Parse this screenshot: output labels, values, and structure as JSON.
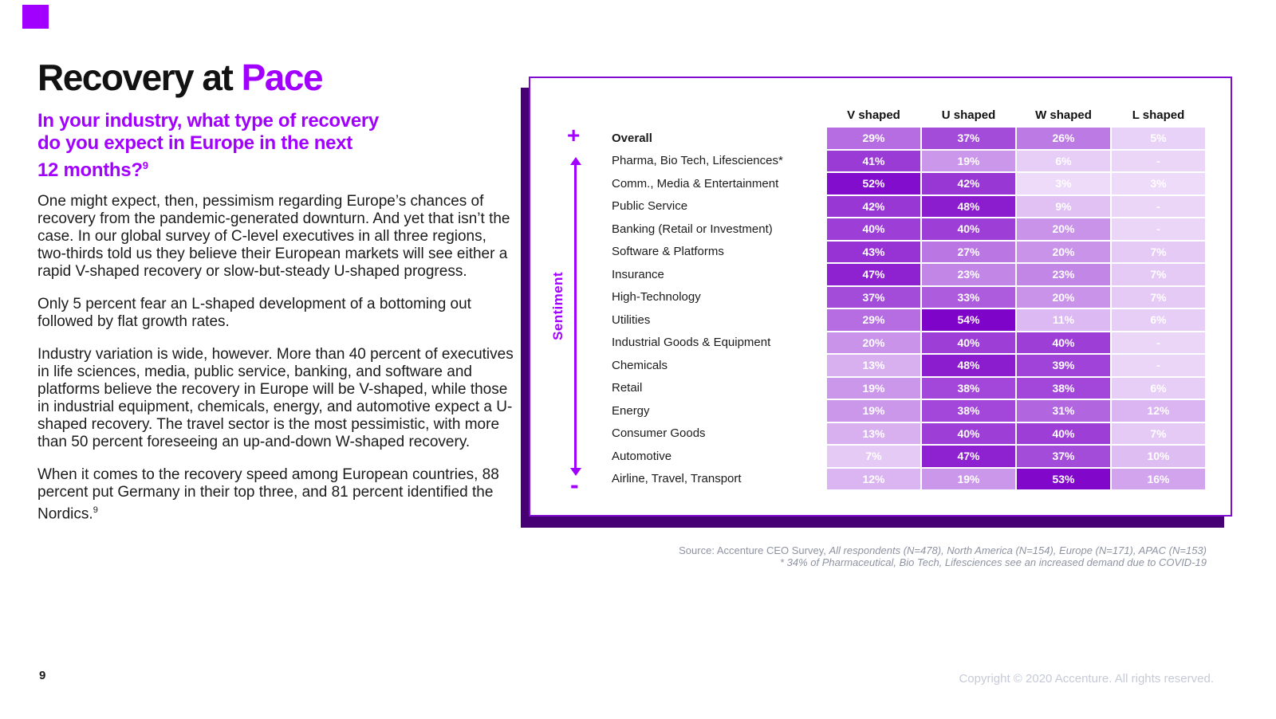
{
  "meta": {
    "page_number": "9",
    "copyright": "Copyright © 2020 Accenture. All rights reserved."
  },
  "colors": {
    "accent": "#a100ff",
    "card_border": "#7f0ccf",
    "card_shadow": "#470073",
    "source_gray": "#8e93a2"
  },
  "title": {
    "prefix": "Recovery at",
    "accent": "Pace"
  },
  "subtitle": {
    "lines": [
      "In your industry, what type of recovery",
      "do you expect in Europe in the next",
      "12 months?"
    ],
    "footnote_ref": "9"
  },
  "paragraphs": [
    {
      "text": "One might expect, then, pessimism regarding Europe’s chances of recovery from the pandemic-generated downturn. And yet that isn’t the case. In our global survey of C-level executives in all three regions, two-thirds told us they believe their European markets will see either a rapid V-shaped recovery or slow-but-steady U-shaped progress."
    },
    {
      "text": "Only 5 percent fear an L-shaped development of a bottoming out followed by flat growth rates."
    },
    {
      "text": "Industry variation is wide, however. More than 40 percent of executives in life sciences, media, public service, banking, and software and platforms believe the recovery in Europe will be V-shaped, while those in industrial equipment, chemicals, energy, and automotive expect a U-shaped recovery. The travel sector is the most pessimistic, with more than 50 percent foreseeing an up-and-down W-shaped recovery."
    },
    {
      "text": "When it comes to the recovery speed among European countries, 88 percent put Germany in their top three, and 81 percent identified the Nordics.",
      "sup": "9"
    }
  ],
  "chart_data": {
    "type": "heatmap",
    "title": "In your industry, what type of recovery do you expect in Europe in the next 12 months?",
    "columns": [
      "V shaped",
      "U shaped",
      "W shaped",
      "L shaped"
    ],
    "rows": [
      {
        "label": "Overall",
        "bold": true,
        "values": [
          29,
          37,
          26,
          5
        ]
      },
      {
        "label": "Pharma, Bio Tech, Lifesciences*",
        "values": [
          41,
          19,
          6,
          null
        ]
      },
      {
        "label": "Comm., Media & Entertainment",
        "values": [
          52,
          42,
          3,
          3
        ]
      },
      {
        "label": "Public Service",
        "values": [
          42,
          48,
          9,
          null
        ]
      },
      {
        "label": "Banking (Retail or Investment)",
        "values": [
          40,
          40,
          20,
          null
        ]
      },
      {
        "label": "Software & Platforms",
        "values": [
          43,
          27,
          20,
          7
        ]
      },
      {
        "label": "Insurance",
        "values": [
          47,
          23,
          23,
          7
        ]
      },
      {
        "label": "High-Technology",
        "values": [
          37,
          33,
          20,
          7
        ]
      },
      {
        "label": "Utilities",
        "values": [
          29,
          54,
          11,
          6
        ]
      },
      {
        "label": "Industrial Goods & Equipment",
        "values": [
          20,
          40,
          40,
          null
        ]
      },
      {
        "label": "Chemicals",
        "values": [
          13,
          48,
          39,
          null
        ]
      },
      {
        "label": "Retail",
        "values": [
          19,
          38,
          38,
          6
        ]
      },
      {
        "label": "Energy",
        "values": [
          19,
          38,
          31,
          12
        ]
      },
      {
        "label": "Consumer Goods",
        "values": [
          13,
          40,
          40,
          7
        ]
      },
      {
        "label": "Automotive",
        "values": [
          7,
          47,
          37,
          10
        ]
      },
      {
        "label": "Airline, Travel, Transport",
        "values": [
          12,
          19,
          53,
          16
        ]
      }
    ],
    "value_suffix": "%",
    "null_display": "-",
    "axis": {
      "label": "Sentiment",
      "plus": "+",
      "minus": "-"
    },
    "color_scale": {
      "min_color": "#f4e7fc",
      "max_color": "#7d00c9",
      "domain": [
        0,
        55
      ],
      "null_value": 4
    }
  },
  "source": {
    "prefix": "Source: ",
    "normal": "Accenture CEO Survey, ",
    "italic": "All respondents (N=478), North America (N=154), Europe (N=171), APAC (N=153)",
    "line2": "* 34% of Pharmaceutical, Bio Tech, Lifesciences see an increased demand due to COVID-19"
  }
}
